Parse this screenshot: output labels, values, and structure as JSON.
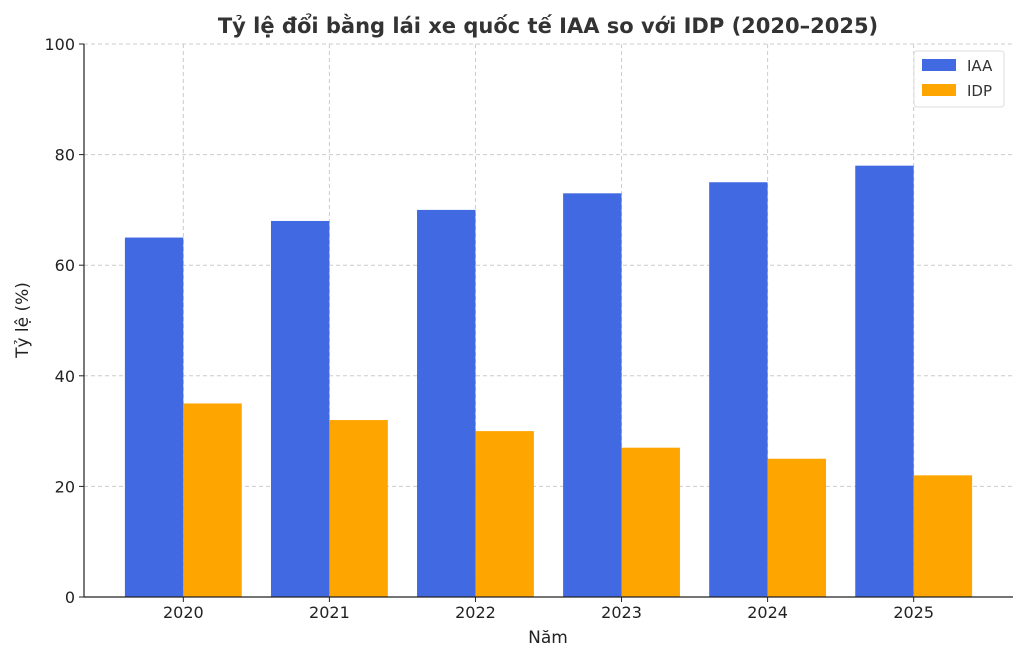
{
  "chart_data": {
    "type": "bar",
    "title": "Tỷ lệ đổi bằng lái xe quốc tế IAA so với IDP (2020–2025)",
    "xlabel": "Năm",
    "ylabel": "Tỷ lệ (%)",
    "categories": [
      "2020",
      "2021",
      "2022",
      "2023",
      "2024",
      "2025"
    ],
    "series": [
      {
        "name": "IAA",
        "color": "#4169E1",
        "values": [
          65,
          68,
          70,
          73,
          75,
          78
        ]
      },
      {
        "name": "IDP",
        "color": "#FFA500",
        "values": [
          35,
          32,
          30,
          27,
          25,
          22
        ]
      }
    ],
    "ylim": [
      0,
      100
    ],
    "yticks": [
      "0",
      "20",
      "40",
      "60",
      "80",
      "100"
    ],
    "grid": true,
    "legend": "top-right"
  }
}
